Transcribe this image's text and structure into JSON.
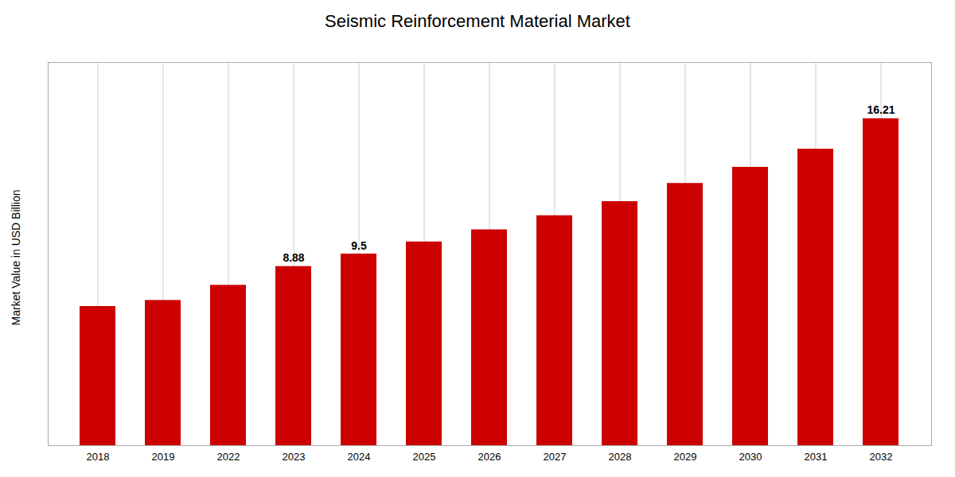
{
  "chart_data": {
    "type": "bar",
    "title": "Seismic Reinforcement Material Market",
    "ylabel": "Market Value in USD Billion",
    "categories": [
      "2018",
      "2019",
      "2022",
      "2023",
      "2024",
      "2025",
      "2026",
      "2027",
      "2028",
      "2029",
      "2030",
      "2031",
      "2032"
    ],
    "values": [
      6.9,
      7.2,
      7.95,
      8.88,
      9.5,
      10.1,
      10.7,
      11.4,
      12.1,
      13.0,
      13.8,
      14.7,
      16.21
    ],
    "color": "#cc0000",
    "ylim": [
      0,
      19
    ],
    "yticks": [],
    "tick_labels": "x",
    "grid": "x",
    "annotations": [
      {
        "category": "2023",
        "text": "8.88"
      },
      {
        "category": "2024",
        "text": "9.5"
      },
      {
        "category": "2032",
        "text": "16.21"
      }
    ]
  }
}
